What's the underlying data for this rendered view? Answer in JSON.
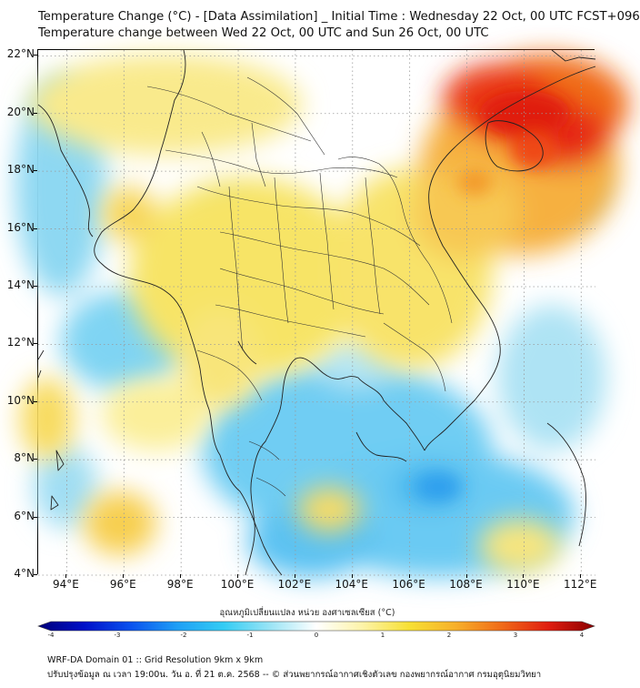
{
  "header": {
    "title_line1": "Temperature Change (°C) - [Data Assimilation] _ Initial Time : Wednesday 22 Oct, 00 UTC FCST+096",
    "title_line2": "Temperature change between Wed 22 Oct, 00 UTC and Sun 26 Oct, 00 UTC"
  },
  "map": {
    "lon_range": [
      93,
      112.5
    ],
    "lat_range": [
      4,
      22.2
    ],
    "lat_labels": [
      "4°N",
      "6°N",
      "8°N",
      "10°N",
      "12°N",
      "14°N",
      "16°N",
      "18°N",
      "20°N",
      "22°N"
    ],
    "lat_values": [
      4,
      6,
      8,
      10,
      12,
      14,
      16,
      18,
      20,
      22
    ],
    "lon_labels": [
      "94°E",
      "96°E",
      "98°E",
      "100°E",
      "102°E",
      "104°E",
      "106°E",
      "108°E",
      "110°E",
      "112°E"
    ],
    "lon_values": [
      94,
      96,
      98,
      100,
      102,
      104,
      106,
      108,
      110,
      112
    ],
    "background_color": "#ffffff",
    "coastline_color": "#222222",
    "gridline_color": "#9a9a9a"
  },
  "colorbar": {
    "title": "อุณหภูมิเปลี่ยนแปลง หน่วย องศาเซลเซียส (°C)",
    "tick_labels": [
      "-4",
      "-3",
      "-2",
      "-1",
      "0",
      "1",
      "2",
      "3",
      "4"
    ],
    "tick_values": [
      -4,
      -3,
      -2,
      -1,
      0,
      1,
      2,
      3,
      4
    ],
    "colors": [
      "#00007a",
      "#0011c8",
      "#0a52ee",
      "#1f9ff5",
      "#33ccf4",
      "#9ae4f5",
      "#ffffff",
      "#fdf3a8",
      "#f7e034",
      "#f7b02a",
      "#f06a18",
      "#e01e10",
      "#8b0000"
    ]
  },
  "footer": {
    "line1": "WRF-DA Domain 01 :: Grid Resolution 9km x 9km",
    "line2": "ปรับปรุงข้อมูล ณ เวลา 19:00น. วัน อ. ที่ 21 ต.ค. 2568 -- © ส่วนพยากรณ์อากาศเชิงตัวเลข กองพยากรณ์อากาศ กรมอุตุนิยมวิทยา"
  }
}
